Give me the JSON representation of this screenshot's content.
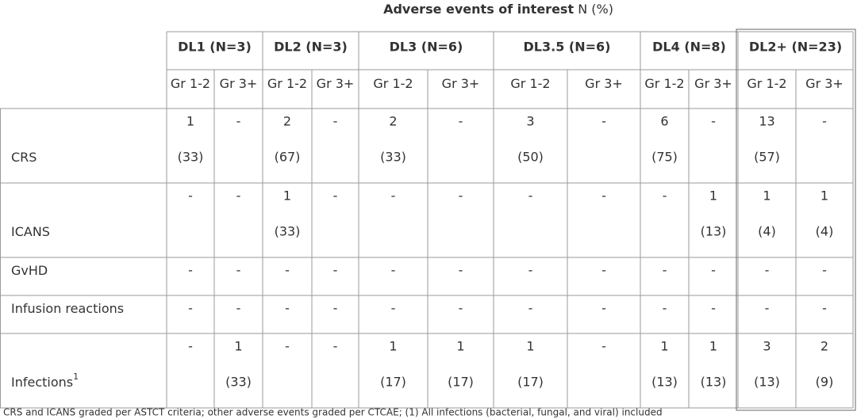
{
  "title": {
    "bold": "Adverse events of interest",
    "rest": "N (%)"
  },
  "groups": [
    {
      "label": "DL1 (N=3)",
      "subcols": [
        "Gr 1-2",
        "Gr 3+"
      ]
    },
    {
      "label": "DL2 (N=3)",
      "subcols": [
        "Gr 1-2",
        "Gr 3+"
      ]
    },
    {
      "label": "DL3 (N=6)",
      "subcols": [
        "Gr 1-2",
        "Gr 3+"
      ]
    },
    {
      "label": "DL3.5 (N=6)",
      "subcols": [
        "Gr 1-2",
        "Gr 3+"
      ]
    },
    {
      "label": "DL4 (N=8)",
      "subcols": [
        "Gr 1-2",
        "Gr 3+"
      ]
    },
    {
      "label": "DL2+ (N=23)",
      "subcols": [
        "Gr 1-2",
        "Gr 3+"
      ]
    }
  ],
  "rows": [
    {
      "label": "CRS",
      "cells": [
        {
          "n": "1",
          "pct": "(33)"
        },
        {
          "n": "-"
        },
        {
          "n": "2",
          "pct": "(67)"
        },
        {
          "n": "-"
        },
        {
          "n": "2",
          "pct": "(33)"
        },
        {
          "n": "-"
        },
        {
          "n": "3",
          "pct": "(50)"
        },
        {
          "n": "-"
        },
        {
          "n": "6",
          "pct": "(75)"
        },
        {
          "n": "-"
        },
        {
          "n": "13",
          "pct": "(57)"
        },
        {
          "n": "-"
        }
      ]
    },
    {
      "label": "ICANS",
      "cells": [
        {
          "n": "-"
        },
        {
          "n": "-"
        },
        {
          "n": "1",
          "pct": "(33)"
        },
        {
          "n": "-"
        },
        {
          "n": "-"
        },
        {
          "n": "-"
        },
        {
          "n": "-"
        },
        {
          "n": "-"
        },
        {
          "n": "-"
        },
        {
          "n": "1",
          "pct": "(13)"
        },
        {
          "n": "1",
          "pct": "(4)"
        },
        {
          "n": "1",
          "pct": "(4)"
        }
      ]
    },
    {
      "label": "GvHD",
      "cells": [
        {
          "n": "-"
        },
        {
          "n": "-"
        },
        {
          "n": "-"
        },
        {
          "n": "-"
        },
        {
          "n": "-"
        },
        {
          "n": "-"
        },
        {
          "n": "-"
        },
        {
          "n": "-"
        },
        {
          "n": "-"
        },
        {
          "n": "-"
        },
        {
          "n": "-"
        },
        {
          "n": "-"
        }
      ]
    },
    {
      "label": "Infusion reactions",
      "cells": [
        {
          "n": "-"
        },
        {
          "n": "-"
        },
        {
          "n": "-"
        },
        {
          "n": "-"
        },
        {
          "n": "-"
        },
        {
          "n": "-"
        },
        {
          "n": "-"
        },
        {
          "n": "-"
        },
        {
          "n": "-"
        },
        {
          "n": "-"
        },
        {
          "n": "-"
        },
        {
          "n": "-"
        }
      ]
    },
    {
      "label": "Infections",
      "footnote_mark": "1",
      "cells": [
        {
          "n": "-"
        },
        {
          "n": "1",
          "pct": "(33)"
        },
        {
          "n": "-"
        },
        {
          "n": "-"
        },
        {
          "n": "1",
          "pct": "(17)"
        },
        {
          "n": "1",
          "pct": "(17)"
        },
        {
          "n": "1",
          "pct": "(17)"
        },
        {
          "n": "-"
        },
        {
          "n": "1",
          "pct": "(13)"
        },
        {
          "n": "1",
          "pct": "(13)"
        },
        {
          "n": "3",
          "pct": "(13)"
        },
        {
          "n": "2",
          "pct": "(9)"
        }
      ]
    }
  ],
  "footnote": "CRS and ICANS graded per ASTCT criteria; other adverse events graded per CTCAE; (1) All infections (bacterial, fungal, and viral) included"
}
